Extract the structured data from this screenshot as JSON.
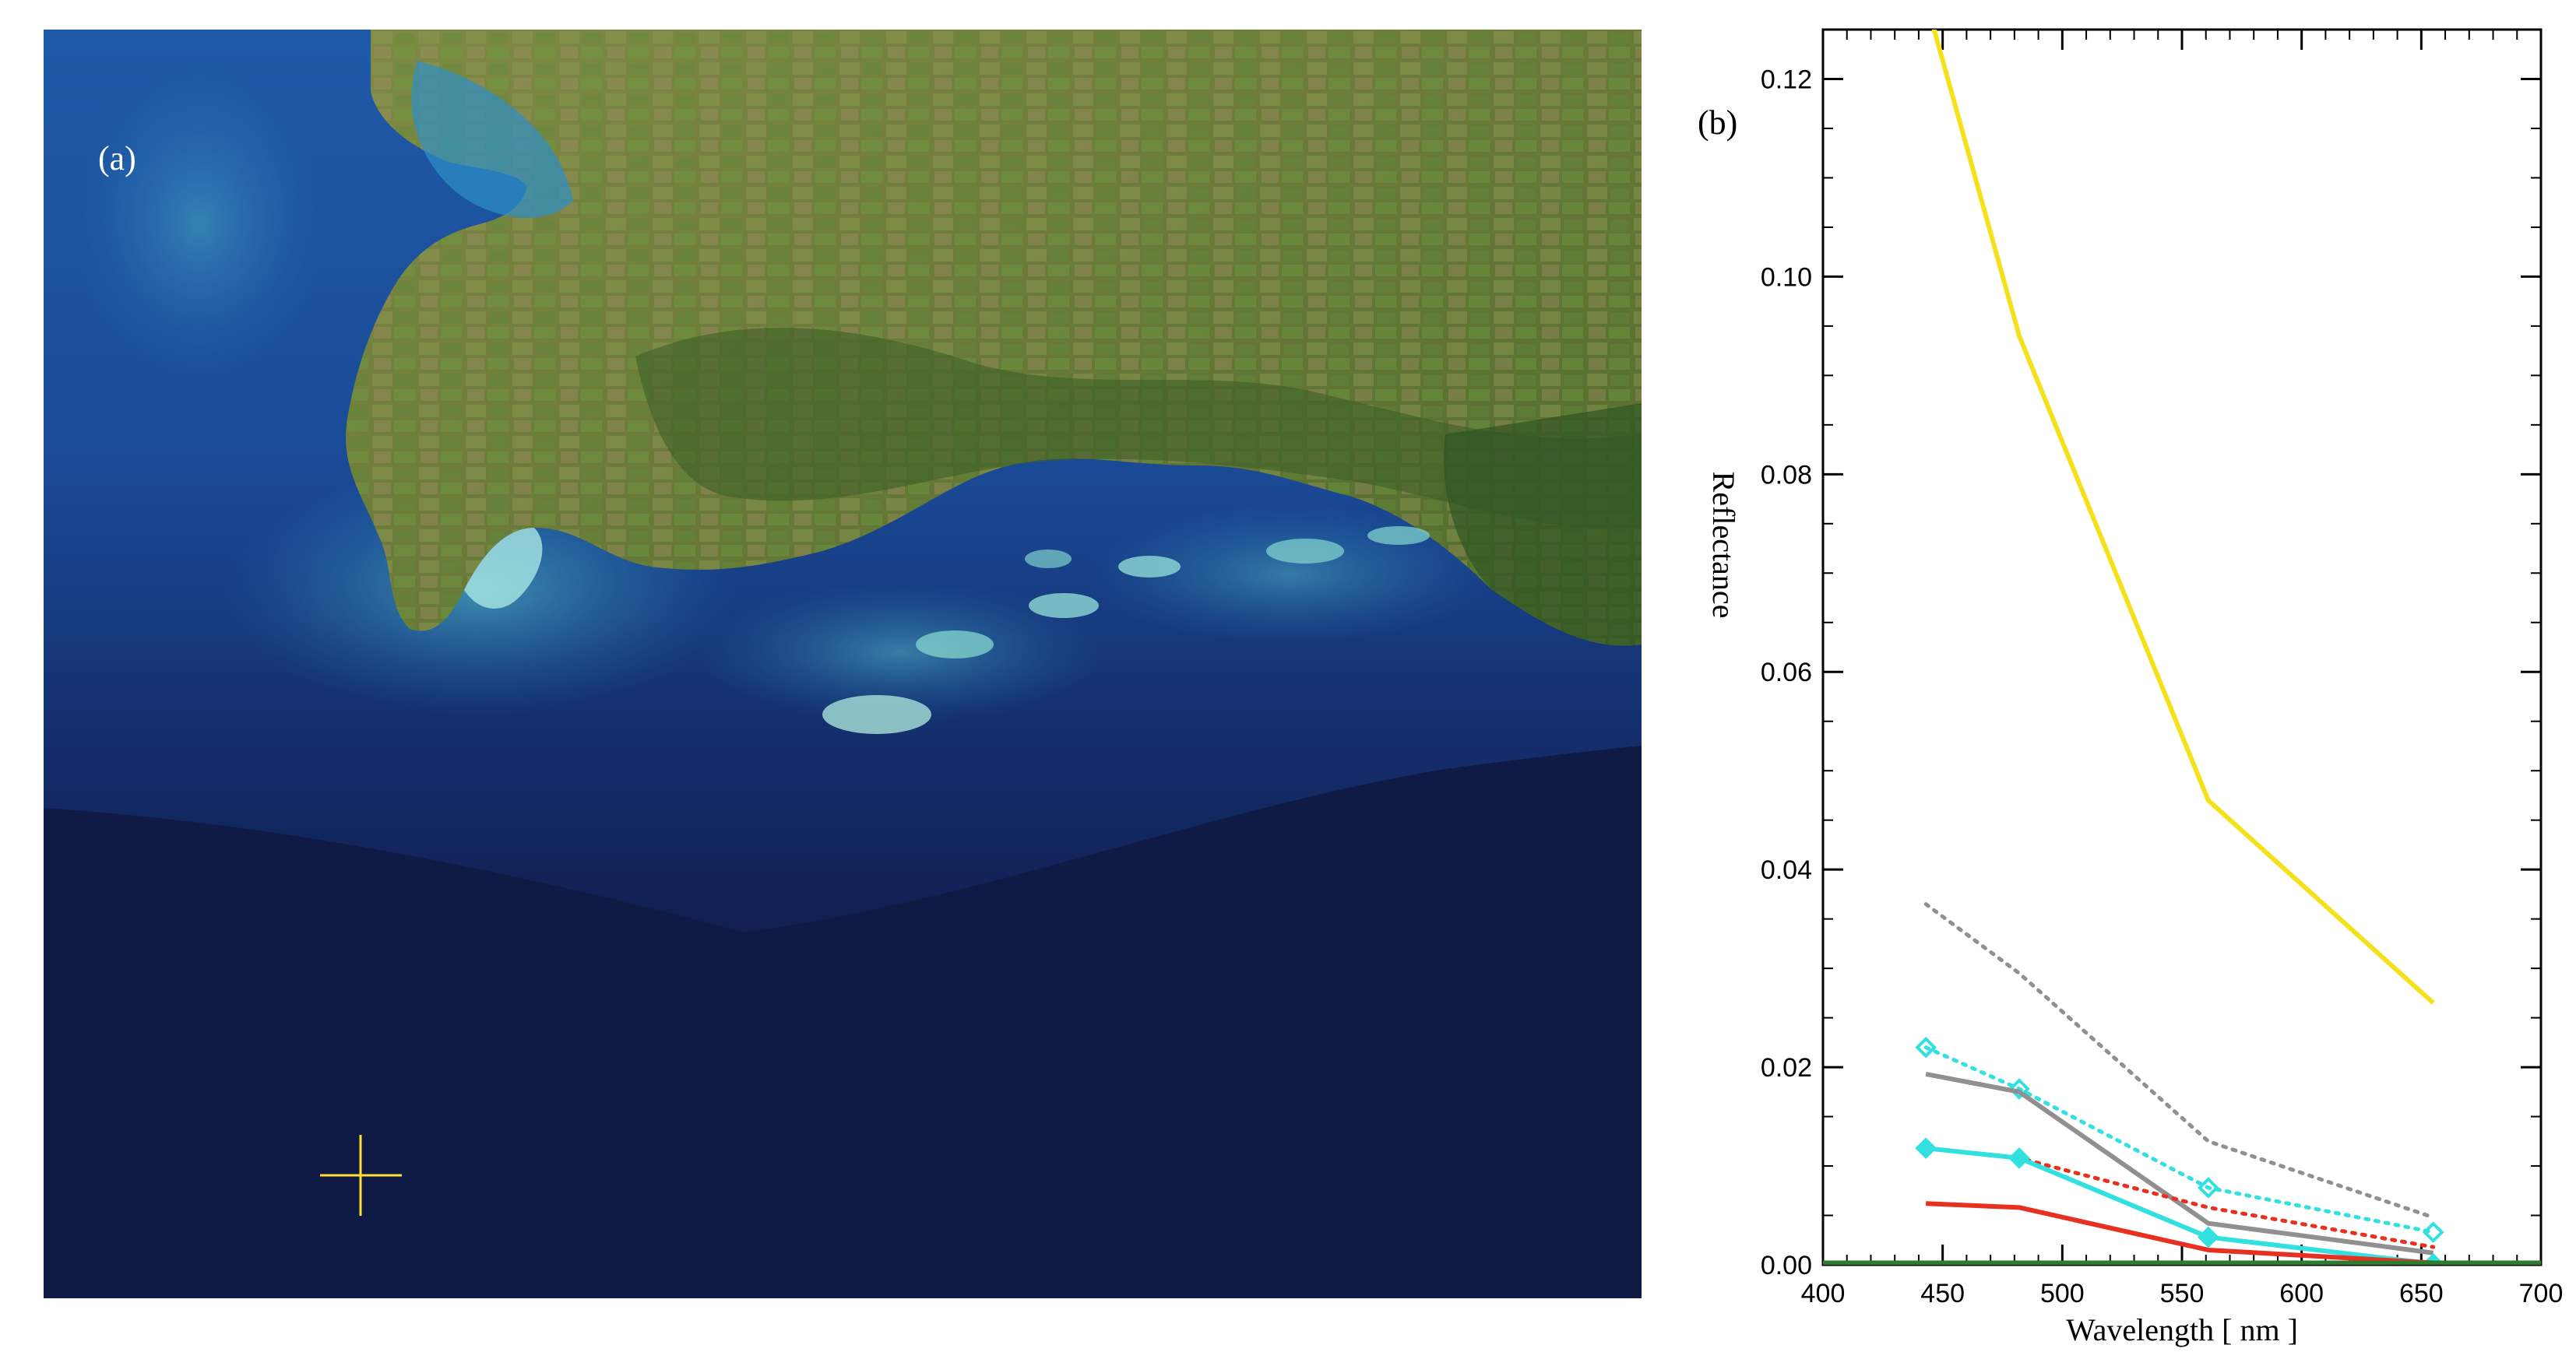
{
  "panel_a": {
    "label": "(a)",
    "marker_color": "#ffe033",
    "icon": "crosshair-icon"
  },
  "panel_b": {
    "label": "(b)"
  },
  "chart_data": {
    "type": "line",
    "title": "",
    "xlabel": "Wavelength [ nm ]",
    "ylabel": "Reflectance",
    "xlim": [
      400,
      700
    ],
    "ylim": [
      0,
      0.125
    ],
    "xticks": [
      400,
      450,
      500,
      550,
      600,
      650,
      700
    ],
    "yticks": [
      0.0,
      0.02,
      0.04,
      0.06,
      0.08,
      0.1,
      0.12
    ],
    "ytick_labels": [
      "0.00",
      "0.02",
      "0.04",
      "0.06",
      "0.08",
      "0.10",
      "0.12"
    ],
    "grid": false,
    "legend": "none",
    "series": [
      {
        "color": "#f5e11b",
        "style": "solid",
        "marker": "none",
        "x": [
          443,
          482,
          561,
          655
        ],
        "y": [
          0.128,
          0.094,
          0.047,
          0.0265
        ]
      },
      {
        "color": "#909090",
        "style": "dotted",
        "marker": "none",
        "x": [
          443,
          482,
          561,
          655
        ],
        "y": [
          0.0365,
          0.0295,
          0.0125,
          0.0048
        ]
      },
      {
        "color": "#33e0e0",
        "style": "dotted",
        "marker": "diamond",
        "x": [
          443,
          482,
          561,
          655
        ],
        "y": [
          0.022,
          0.0178,
          0.0078,
          0.0033
        ]
      },
      {
        "color": "#909090",
        "style": "solid",
        "marker": "none",
        "x": [
          443,
          482,
          561,
          655
        ],
        "y": [
          0.0193,
          0.0175,
          0.0042,
          0.0012
        ]
      },
      {
        "color": "#e83020",
        "style": "dotted",
        "marker": "none",
        "x": [
          443,
          482,
          561,
          655
        ],
        "y": [
          0.0118,
          0.0108,
          0.0058,
          0.0018
        ]
      },
      {
        "color": "#33e0e0",
        "style": "solid",
        "marker": "diamond",
        "x": [
          443,
          482,
          561,
          655
        ],
        "y": [
          0.0118,
          0.0108,
          0.0028,
          0.0001
        ]
      },
      {
        "color": "#e83020",
        "style": "solid",
        "marker": "none",
        "x": [
          443,
          482,
          561,
          655
        ],
        "y": [
          0.0062,
          0.0058,
          0.0015,
          0.0002
        ]
      },
      {
        "color": "#2e7d2e",
        "style": "solid",
        "marker": "none",
        "x": [
          400,
          700
        ],
        "y": [
          0.0002,
          0.0002
        ]
      }
    ]
  }
}
